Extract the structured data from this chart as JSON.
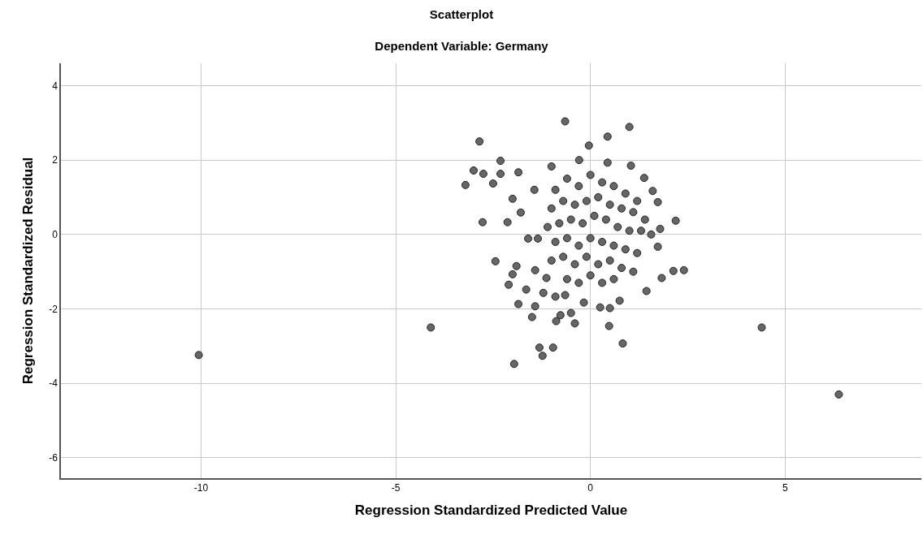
{
  "chart_data": {
    "type": "scatter",
    "title": "Scatterplot",
    "subtitle": "Dependent Variable: Germany",
    "xlabel": "Regression Standardized Predicted Value",
    "ylabel": "Regression Standardized Residual",
    "xlim": [
      -13.6,
      8.5
    ],
    "ylim": [
      -6.55,
      4.6
    ],
    "xticks": [
      -10,
      -5,
      0,
      5
    ],
    "yticks": [
      -6,
      -4,
      -2,
      0,
      2,
      4
    ],
    "grid": true,
    "marker": "circle",
    "series": [
      {
        "color": "#666666",
        "x": [
          -10.06,
          -4.1,
          4.4,
          6.38,
          -0.65,
          1.0,
          0.44,
          -0.04,
          1.04,
          1.38,
          1.6,
          1.73,
          2.19,
          1.79,
          -1.0,
          -0.29,
          0.44,
          -1.44,
          -1.79,
          -2.77,
          -2.13,
          -1.6,
          -1.35,
          -2.44,
          -1.42,
          -1.13,
          -1.21,
          -0.9,
          -0.65,
          -0.17,
          0.25,
          0.5,
          0.75,
          0.48,
          0.83,
          1.44,
          1.83,
          2.13,
          2.4,
          1.56,
          1.73,
          -2.85,
          -3.21,
          -3.0,
          -2.75,
          -2.31,
          -2.31,
          -2.5,
          -1.85,
          -2.0,
          -2.1,
          -1.9,
          -2.0,
          -1.85,
          -1.65,
          -1.5,
          -1.42,
          -0.88,
          -0.77,
          -0.5,
          -0.4,
          -1.31,
          -1.23,
          -1.96,
          -0.96,
          -0.9,
          -0.6,
          -0.3,
          0.0,
          0.3,
          0.6,
          0.9,
          1.2,
          -1.0,
          -0.7,
          -0.4,
          -0.1,
          0.2,
          0.5,
          0.8,
          1.1,
          1.4,
          -1.1,
          -0.8,
          -0.5,
          -0.2,
          0.1,
          0.4,
          0.7,
          1.0,
          1.3,
          -0.9,
          -0.6,
          -0.3,
          0.0,
          0.3,
          0.6,
          0.9,
          1.2,
          -1.0,
          -0.7,
          -0.4,
          -0.1,
          0.2,
          0.5,
          0.8,
          1.1,
          -0.6,
          -0.3,
          0.0,
          0.3,
          0.6
        ],
        "values": [
          -3.24,
          -2.5,
          -2.5,
          -4.3,
          3.04,
          2.89,
          2.63,
          2.39,
          1.85,
          1.52,
          1.17,
          0.87,
          0.37,
          0.15,
          1.83,
          2.0,
          1.93,
          1.2,
          0.59,
          0.33,
          0.33,
          -0.11,
          -0.11,
          -0.72,
          -0.96,
          -1.17,
          -1.57,
          -1.67,
          -1.63,
          -1.83,
          -1.96,
          -1.98,
          -1.78,
          -2.46,
          -2.93,
          -1.52,
          -1.17,
          -0.98,
          -0.96,
          0.0,
          -0.33,
          2.5,
          1.33,
          1.72,
          1.63,
          1.98,
          1.63,
          1.37,
          1.67,
          0.96,
          -1.35,
          -0.85,
          -1.07,
          -1.87,
          -1.48,
          -2.22,
          -1.93,
          -2.33,
          -2.17,
          -2.11,
          -2.39,
          -3.04,
          -3.26,
          -3.48,
          -3.04,
          1.2,
          1.5,
          1.3,
          1.6,
          1.4,
          1.3,
          1.1,
          0.9,
          0.7,
          0.9,
          0.8,
          0.9,
          1.0,
          0.8,
          0.7,
          0.6,
          0.4,
          0.2,
          0.3,
          0.4,
          0.3,
          0.5,
          0.4,
          0.2,
          0.1,
          0.1,
          -0.2,
          -0.1,
          -0.3,
          -0.1,
          -0.2,
          -0.3,
          -0.4,
          -0.5,
          -0.7,
          -0.6,
          -0.8,
          -0.6,
          -0.8,
          -0.7,
          -0.9,
          -1.0,
          -1.2,
          -1.3,
          -1.1,
          -1.3,
          -1.2
        ]
      }
    ]
  }
}
